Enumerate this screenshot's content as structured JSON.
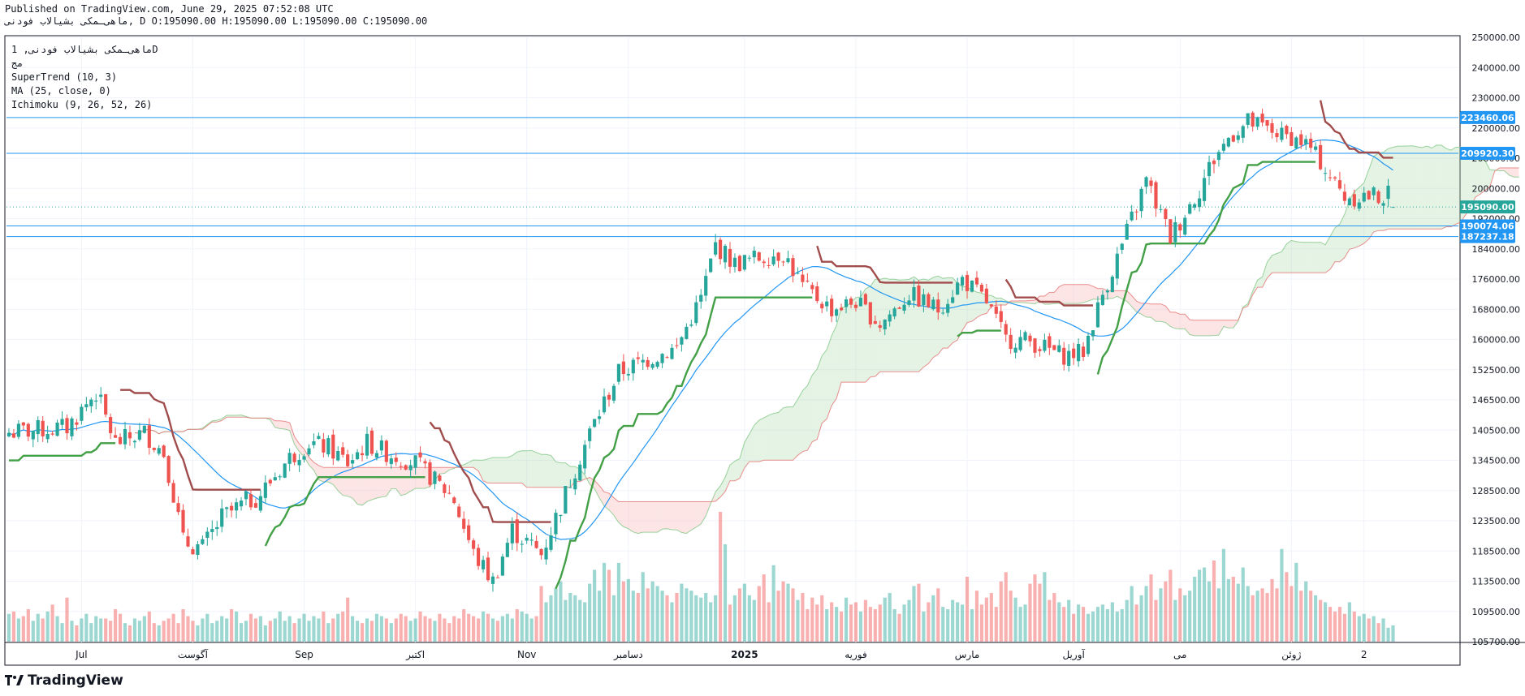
{
  "header": {
    "published": "Published on TradingView.com, June 29, 2025 07:52:08 UTC",
    "ohlc": "ماهی‌ـمکی بشیالاب فودنی, D O:195090.00 H:195090.00 L:195090.00 C:195090.00"
  },
  "legend": {
    "symbol": "ماهی‌ـمکی بشیالاب فودنی, 1D",
    "subtitle": "مج",
    "supertrend": "SuperTrend (10, 3)",
    "ma": "MA (25, close, 0)",
    "ichimoku": "Ichimoku (9, 26, 52, 26)"
  },
  "brand": {
    "logo_text": "TradingView"
  },
  "colors": {
    "up": "#26a69a",
    "down": "#ef5350",
    "st_up": "#43a047",
    "st_down": "#a14d4d",
    "ma": "#2196f3",
    "hline": "#2196f3",
    "last": "#26a69a"
  },
  "chart_data": {
    "type": "candlestick",
    "ylim": [
      105700,
      250000
    ],
    "y_ticks": [
      105700,
      109500,
      113500,
      118500,
      123500,
      128500,
      134500,
      140500,
      146500,
      152500,
      160000,
      168000,
      176000,
      184000,
      192000,
      200000,
      208000,
      220000,
      230000,
      240000,
      250000
    ],
    "y_tick_labels": [
      "105700.00",
      "109500.00",
      "113500.00",
      "118500.00",
      "123500.00",
      "128500.00",
      "134500.00",
      "140500.00",
      "146500.00",
      "152500.00",
      "160000.00",
      "168000.00",
      "176000.00",
      "184000.00",
      "192000.00",
      "200000.00",
      "208000.00",
      "220000.00",
      "230000.00",
      "240000.00",
      "250000.00"
    ],
    "x_labels": [
      "Jul",
      "آگوست",
      "Sep",
      "اکتبر",
      "Nov",
      "دسامبر",
      "2025",
      "فوریه",
      "مارس",
      "آوریل",
      "می",
      "ژوئن",
      "2"
    ],
    "x_label_bars": [
      15,
      38,
      61,
      84,
      107,
      128,
      152,
      175,
      198,
      220,
      242,
      265,
      280
    ],
    "horizontal_lines": [
      223460.06,
      209920.3,
      190074.06,
      187237.18
    ],
    "price_labels": [
      {
        "value": 223460.06,
        "text": "223460.06",
        "color": "#2196f3"
      },
      {
        "value": 209920.3,
        "text": "209920.30",
        "color": "#2196f3"
      },
      {
        "value": 195090.0,
        "text": "195090.00",
        "color": "#26a69a"
      },
      {
        "value": 190074.06,
        "text": "190074.06",
        "color": "#2196f3"
      },
      {
        "value": 187237.18,
        "text": "187237.18",
        "color": "#2196f3"
      }
    ],
    "last_close": 195090,
    "anchors": [
      [
        0,
        140000
      ],
      [
        12,
        141000
      ],
      [
        18,
        148000
      ],
      [
        22,
        138000
      ],
      [
        28,
        140000
      ],
      [
        32,
        136000
      ],
      [
        36,
        120000
      ],
      [
        40,
        119000
      ],
      [
        44,
        124000
      ],
      [
        52,
        128000
      ],
      [
        58,
        135000
      ],
      [
        62,
        138000
      ],
      [
        66,
        137000
      ],
      [
        70,
        134000
      ],
      [
        74,
        138000
      ],
      [
        78,
        136000
      ],
      [
        84,
        134000
      ],
      [
        92,
        127000
      ],
      [
        96,
        118000
      ],
      [
        100,
        113500
      ],
      [
        104,
        122000
      ],
      [
        110,
        118000
      ],
      [
        115,
        128000
      ],
      [
        120,
        140000
      ],
      [
        126,
        152000
      ],
      [
        132,
        155000
      ],
      [
        138,
        158000
      ],
      [
        143,
        171000
      ],
      [
        146,
        185000
      ],
      [
        150,
        180000
      ],
      [
        156,
        182000
      ],
      [
        160,
        183000
      ],
      [
        164,
        174000
      ],
      [
        170,
        168000
      ],
      [
        175,
        170000
      ],
      [
        180,
        164000
      ],
      [
        186,
        172000
      ],
      [
        192,
        168000
      ],
      [
        197,
        176000
      ],
      [
        202,
        170000
      ],
      [
        206,
        160000
      ],
      [
        210,
        160000
      ],
      [
        214,
        158000
      ],
      [
        218,
        156000
      ],
      [
        222,
        157000
      ],
      [
        226,
        172000
      ],
      [
        230,
        185000
      ],
      [
        235,
        202000
      ],
      [
        240,
        187000
      ],
      [
        246,
        200000
      ],
      [
        252,
        216000
      ],
      [
        256,
        222000
      ],
      [
        262,
        218000
      ],
      [
        268,
        214000
      ],
      [
        274,
        201000
      ],
      [
        276,
        198000
      ]
    ],
    "volume_max": 5.6,
    "volume_levels": [
      1.2,
      1.3,
      1.0,
      1.1,
      1.4,
      0.9,
      1.2,
      1.0,
      1.3,
      1.6,
      1.1,
      0.8,
      1.9,
      0.9,
      0.7,
      1.0,
      1.2,
      0.8,
      1.1,
      1.0,
      1.0,
      0.9,
      1.4,
      1.2,
      0.8,
      0.7,
      1.0,
      0.9,
      1.1,
      1.3,
      0.8,
      0.7,
      0.9,
      1.0,
      1.2,
      0.8,
      1.4,
      1.1,
      0.9,
      0.7,
      1.0,
      1.2,
      0.8,
      0.9,
      1.1,
      1.0,
      1.4,
      1.3,
      0.8,
      0.9,
      1.2,
      1.0,
      1.1,
      0.7,
      0.9,
      1.0,
      1.3,
      0.9,
      1.1,
      0.8,
      1.0,
      1.2,
      0.9,
      1.1,
      1.0,
      1.3,
      0.8,
      1.0,
      1.2,
      1.3,
      1.9,
      1.1,
      0.9,
      0.8,
      1.0,
      0.9,
      1.2,
      1.1,
      1.0,
      0.8,
      1.0,
      1.2,
      1.1,
      0.9,
      1.0,
      1.3,
      1.1,
      1.0,
      0.9,
      1.2,
      1.0,
      0.8,
      1.1,
      1.0,
      1.4,
      1.2,
      1.1,
      1.0,
      1.3,
      1.2,
      1.0,
      0.9,
      1.1,
      1.2,
      1.0,
      1.4,
      1.3,
      1.2,
      1.0,
      1.1,
      2.4,
      1.7,
      2.0,
      2.3,
      2.6,
      1.8,
      2.1,
      2.0,
      1.8,
      1.7,
      2.5,
      3.1,
      2.2,
      3.4,
      3.1,
      2.0,
      3.4,
      2.6,
      2.7,
      2.2,
      2.1,
      3.0,
      2.3,
      2.6,
      2.4,
      2.2,
      2.0,
      1.7,
      2.1,
      2.5,
      2.3,
      2.2,
      2.0,
      1.9,
      2.1,
      1.7,
      2.0,
      5.6,
      4.2,
      1.6,
      2.0,
      2.3,
      2.5,
      2.0,
      1.8,
      2.4,
      2.9,
      1.7,
      3.3,
      2.2,
      2.6,
      2.5,
      2.3,
      1.8,
      2.1,
      1.4,
      1.9,
      1.6,
      2.0,
      1.4,
      1.7,
      1.5,
      1.3,
      1.9,
      1.6,
      1.7,
      1.3,
      1.8,
      1.5,
      1.4,
      1.6,
      1.9,
      2.1,
      1.4,
      1.2,
      1.6,
      1.8,
      2.4,
      2.5,
      1.3,
      1.7,
      2.0,
      2.3,
      1.5,
      1.4,
      1.8,
      1.7,
      1.6,
      2.8,
      1.4,
      2.2,
      1.6,
      1.9,
      2.1,
      1.5,
      2.6,
      3.0,
      2.2,
      1.9,
      1.5,
      1.6,
      2.5,
      2.9,
      2.5,
      3.0,
      1.8,
      2.1,
      1.7,
      1.5,
      1.8,
      1.2,
      1.6,
      1.5,
      1.2,
      1.3,
      1.5,
      1.6,
      1.4,
      1.7,
      1.3,
      1.4,
      1.8,
      2.4,
      1.6,
      2.0,
      2.4,
      2.9,
      1.8,
      2.3,
      2.6,
      3.1,
      1.8,
      2.3,
      2.0,
      2.2,
      2.8,
      3.1,
      3.2,
      2.6,
      3.5,
      2.3,
      4.0,
      2.7,
      2.8,
      2.5,
      3.2,
      2.4,
      2.0,
      2.2,
      2.3,
      2.1,
      2.7,
      2.3,
      4.0,
      3.0,
      2.4,
      3.4,
      2.2,
      2.6,
      2.2,
      2.0,
      1.8,
      1.7,
      1.5,
      1.3,
      1.5,
      1.2,
      1.7,
      1.3,
      1.1,
      1.2,
      1.0,
      1.1,
      0.8,
      1.0,
      0.6,
      0.7
    ]
  }
}
